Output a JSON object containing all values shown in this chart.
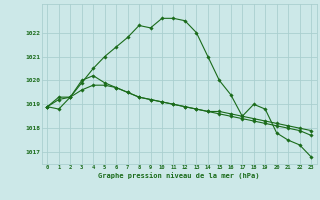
{
  "background_color": "#cce8e8",
  "grid_color": "#aacfcf",
  "line_color": "#1a6b1a",
  "x_values": [
    0,
    1,
    2,
    3,
    4,
    5,
    6,
    7,
    8,
    9,
    10,
    11,
    12,
    13,
    14,
    15,
    16,
    17,
    18,
    19,
    20,
    21,
    22,
    23
  ],
  "series1": [
    1018.9,
    1018.8,
    1019.3,
    1019.9,
    1020.5,
    1021.0,
    1021.4,
    1021.8,
    1022.3,
    1022.2,
    1022.6,
    1022.6,
    1022.5,
    1022.0,
    1021.0,
    1020.0,
    1019.4,
    1018.5,
    1019.0,
    1018.8,
    1017.8,
    1017.5,
    1017.3,
    1016.8
  ],
  "series2": [
    1018.9,
    1019.3,
    1019.3,
    1020.0,
    1020.2,
    1019.9,
    1019.7,
    1019.5,
    1019.3,
    1019.2,
    1019.1,
    1019.0,
    1018.9,
    1018.8,
    1018.7,
    1018.7,
    1018.6,
    1018.5,
    1018.4,
    1018.3,
    1018.2,
    1018.1,
    1018.0,
    1017.9
  ],
  "series3": [
    1018.9,
    1019.2,
    1019.3,
    1019.6,
    1019.8,
    1019.8,
    1019.7,
    1019.5,
    1019.3,
    1019.2,
    1019.1,
    1019.0,
    1018.9,
    1018.8,
    1018.7,
    1018.6,
    1018.5,
    1018.4,
    1018.3,
    1018.2,
    1018.1,
    1018.0,
    1017.9,
    1017.7
  ],
  "ylim": [
    1016.5,
    1023.2
  ],
  "yticks": [
    1017,
    1018,
    1019,
    1020,
    1021,
    1022
  ],
  "xlabel": "Graphe pression niveau de la mer (hPa)",
  "marker": "D",
  "marker_size": 1.8,
  "linewidth": 0.8,
  "tick_fontsize": 4.0,
  "label_fontsize": 5.0
}
